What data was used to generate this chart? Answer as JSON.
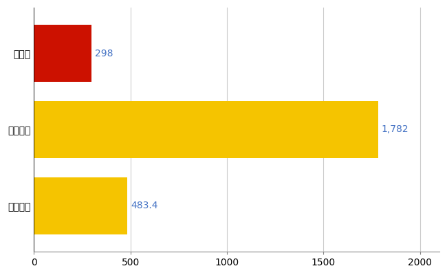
{
  "categories": [
    "全国平均",
    "全国最大",
    "山口県"
  ],
  "values": [
    483.4,
    1782,
    298
  ],
  "bar_colors": [
    "#F5C400",
    "#F5C400",
    "#CC1100"
  ],
  "value_labels": [
    "483.4",
    "1,782",
    "298"
  ],
  "xlim": [
    0,
    2100
  ],
  "xticks": [
    0,
    500,
    1000,
    1500,
    2000
  ],
  "bar_height": 0.75,
  "label_color": "#4472C4",
  "grid_color": "#CCCCCC",
  "background_color": "#FFFFFF",
  "label_fontsize": 10,
  "tick_fontsize": 10,
  "figsize": [
    6.5,
    4.0
  ],
  "dpi": 100
}
